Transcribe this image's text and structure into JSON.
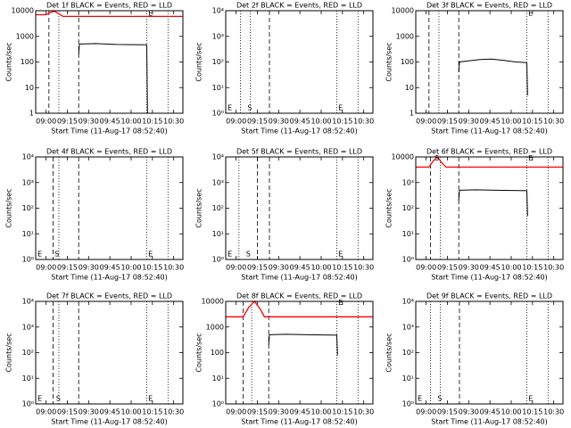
{
  "chart_data": [
    {
      "type": "line",
      "title": "Det 1f BLACK = Events, RED = LLD",
      "ylabel": "Counts/sec",
      "xlabel": "Start Time (11-Aug-17 08:52:40)",
      "log_y": true,
      "xlim": [
        532.67,
        636.5
      ],
      "xticks": [
        {
          "value": 540,
          "label": "09:00"
        },
        {
          "value": 555,
          "label": "09:15"
        },
        {
          "value": 570,
          "label": "09:30"
        },
        {
          "value": 585,
          "label": "09:45"
        },
        {
          "value": 600,
          "label": "10:00"
        },
        {
          "value": 615,
          "label": "10:15"
        },
        {
          "value": 630,
          "label": "10:30"
        }
      ],
      "ylim": [
        1,
        10000
      ],
      "yticks": [
        1,
        10,
        100,
        1000,
        10000
      ],
      "series": [
        {
          "color": "#ff0000",
          "x": [
            532.67,
            540,
            543,
            546,
            549,
            552,
            636.5
          ],
          "values": [
            7000,
            7000,
            8500,
            9500,
            7500,
            6000,
            6000
          ]
        },
        {
          "color": "#000000",
          "x": [
            563,
            563.5,
            575,
            590,
            611,
            611.5
          ],
          "values": [
            200,
            500,
            520,
            480,
            470,
            1
          ]
        }
      ],
      "vlines": [
        {
          "x": 542,
          "style": "dashed"
        },
        {
          "x": 549,
          "style": "dotted"
        },
        {
          "x": 563,
          "style": "dashed"
        },
        {
          "x": 611,
          "style": "dotted"
        },
        {
          "x": 626,
          "style": "dotted"
        }
      ],
      "annotations": [
        {
          "text": "E",
          "x": 612,
          "y": 8000
        }
      ]
    },
    {
      "type": "line",
      "title": "Det 2f BLACK = Events, RED = LLD",
      "ylabel": "Counts/sec",
      "xlabel": "Start Time (11-Aug-17 08:52:40)",
      "log_y": true,
      "xlim": [
        532.67,
        636.5
      ],
      "xticks": [
        {
          "value": 540,
          "label": "09:00"
        },
        {
          "value": 555,
          "label": "09:15"
        },
        {
          "value": 570,
          "label": "09:30"
        },
        {
          "value": 585,
          "label": "09:45"
        },
        {
          "value": 600,
          "label": "10:00"
        },
        {
          "value": 615,
          "label": "10:15"
        },
        {
          "value": 630,
          "label": "10:30"
        }
      ],
      "ylim": [
        1,
        10000
      ],
      "yticks": [
        {
          "value": 1,
          "label": "10⁰"
        },
        {
          "value": 10,
          "label": "10¹"
        },
        {
          "value": 100,
          "label": "10²"
        },
        {
          "value": 1000,
          "label": "10³"
        },
        {
          "value": 10000,
          "label": "10⁴"
        }
      ],
      "series": [],
      "vlines": [
        {
          "x": 543,
          "style": "dotted"
        },
        {
          "x": 550,
          "style": "dotted"
        },
        {
          "x": 563.5,
          "style": "dashed"
        },
        {
          "x": 611,
          "style": "dotted"
        },
        {
          "x": 626,
          "style": "dotted"
        }
      ],
      "annotations": [
        {
          "text": "E",
          "x": 534,
          "y": 1.6
        },
        {
          "text": "S",
          "x": 548,
          "y": 1.6
        },
        {
          "text": "E",
          "x": 612,
          "y": 1.6
        }
      ]
    },
    {
      "type": "line",
      "title": "Det 3f BLACK = Events, RED = LLD",
      "ylabel": "Counts/sec",
      "xlabel": "Start Time (11-Aug-17 08:52:40)",
      "log_y": true,
      "xlim": [
        532.67,
        636.5
      ],
      "xticks": [
        {
          "value": 540,
          "label": "09:00"
        },
        {
          "value": 555,
          "label": "09:15"
        },
        {
          "value": 570,
          "label": "09:30"
        },
        {
          "value": 585,
          "label": "09:45"
        },
        {
          "value": 600,
          "label": "10:00"
        },
        {
          "value": 615,
          "label": "10:15"
        },
        {
          "value": 630,
          "label": "10:30"
        }
      ],
      "ylim": [
        1,
        10000
      ],
      "yticks": [
        1,
        10,
        100,
        1000,
        10000
      ],
      "series": [
        {
          "color": "#000000",
          "x": [
            563,
            563.5,
            570,
            578,
            586,
            595,
            603,
            610,
            611,
            611.5
          ],
          "values": [
            40,
            100,
            110,
            125,
            130,
            115,
            100,
            95,
            90,
            5
          ]
        }
      ],
      "vlines": [
        {
          "x": 542,
          "style": "dashed"
        },
        {
          "x": 549,
          "style": "dotted"
        },
        {
          "x": 563,
          "style": "dashed"
        },
        {
          "x": 611,
          "style": "dotted"
        },
        {
          "x": 626,
          "style": "dotted"
        }
      ],
      "annotations": [
        {
          "text": "E",
          "x": 612,
          "y": 8000
        }
      ]
    },
    {
      "type": "line",
      "title": "Det 4f BLACK = Events, RED = LLD",
      "ylabel": "Counts/sec",
      "xlabel": "Start Time (11-Aug-17 08:52:40)",
      "log_y": true,
      "xlim": [
        532.67,
        636.5
      ],
      "xticks": [
        {
          "value": 540,
          "label": "09:00"
        },
        {
          "value": 555,
          "label": "09:15"
        },
        {
          "value": 570,
          "label": "09:30"
        },
        {
          "value": 585,
          "label": "09:45"
        },
        {
          "value": 600,
          "label": "10:00"
        },
        {
          "value": 615,
          "label": "10:15"
        },
        {
          "value": 630,
          "label": "10:30"
        }
      ],
      "ylim": [
        1,
        10000
      ],
      "yticks": [
        {
          "value": 1,
          "label": "10⁰"
        },
        {
          "value": 10,
          "label": "10¹"
        },
        {
          "value": 100,
          "label": "10²"
        },
        {
          "value": 1000,
          "label": "10³"
        },
        {
          "value": 10000,
          "label": "10⁴"
        }
      ],
      "series": [],
      "vlines": [
        {
          "x": 545,
          "style": "dashed"
        },
        {
          "x": 549,
          "style": "dotted"
        },
        {
          "x": 563,
          "style": "dashed"
        },
        {
          "x": 611,
          "style": "dotted"
        },
        {
          "x": 626,
          "style": "dotted"
        }
      ],
      "annotations": [
        {
          "text": "E",
          "x": 534,
          "y": 1.6
        },
        {
          "text": "S",
          "x": 546,
          "y": 1.6
        },
        {
          "text": "E",
          "x": 612,
          "y": 1.6
        }
      ]
    },
    {
      "type": "line",
      "title": "Det 5f BLACK = Events, RED = LLD",
      "ylabel": "Counts/sec",
      "xlabel": "Start Time (11-Aug-17 08:52:40)",
      "log_y": true,
      "xlim": [
        532.67,
        636.5
      ],
      "xticks": [
        {
          "value": 540,
          "label": "09:00"
        },
        {
          "value": 555,
          "label": "09:15"
        },
        {
          "value": 570,
          "label": "09:30"
        },
        {
          "value": 585,
          "label": "09:45"
        },
        {
          "value": 600,
          "label": "10:00"
        },
        {
          "value": 615,
          "label": "10:15"
        },
        {
          "value": 630,
          "label": "10:30"
        }
      ],
      "ylim": [
        1,
        10000
      ],
      "yticks": [
        {
          "value": 1,
          "label": "10⁰"
        },
        {
          "value": 10,
          "label": "10¹"
        },
        {
          "value": 100,
          "label": "10²"
        },
        {
          "value": 1000,
          "label": "10³"
        },
        {
          "value": 10000,
          "label": "10⁴"
        }
      ],
      "series": [],
      "vlines": [
        {
          "x": 542,
          "style": "dotted"
        },
        {
          "x": 555,
          "style": "dashed"
        },
        {
          "x": 563.5,
          "style": "dashed"
        },
        {
          "x": 611,
          "style": "dotted"
        },
        {
          "x": 626,
          "style": "dotted"
        }
      ],
      "annotations": [
        {
          "text": "E",
          "x": 534,
          "y": 1.6
        },
        {
          "text": "S",
          "x": 547,
          "y": 1.6
        },
        {
          "text": "E",
          "x": 612,
          "y": 1.6
        }
      ]
    },
    {
      "type": "line",
      "title": "Det 6f BLACK = Events, RED = LLD",
      "ylabel": "Counts/sec",
      "xlabel": "Start Time (11-Aug-17 08:52:40)",
      "log_y": true,
      "xlim": [
        532.67,
        636.5
      ],
      "xticks": [
        {
          "value": 540,
          "label": "09:00"
        },
        {
          "value": 555,
          "label": "09:15"
        },
        {
          "value": 570,
          "label": "09:30"
        },
        {
          "value": 585,
          "label": "09:45"
        },
        {
          "value": 600,
          "label": "10:00"
        },
        {
          "value": 615,
          "label": "10:15"
        },
        {
          "value": 630,
          "label": "10:30"
        }
      ],
      "ylim": [
        1,
        10000
      ],
      "yticks": [
        {
          "value": 1,
          "label": "10⁰"
        },
        {
          "value": 10,
          "label": "10¹"
        },
        {
          "value": 100,
          "label": "10²"
        },
        {
          "value": 1000,
          "label": "10³"
        },
        10000
      ],
      "series": [
        {
          "color": "#ff0000",
          "x": [
            532.67,
            542,
            545,
            548,
            551,
            554,
            636.5
          ],
          "values": [
            4000,
            4000,
            7000,
            10000,
            6000,
            4000,
            4000
          ]
        },
        {
          "color": "#000000",
          "x": [
            563,
            563.5,
            575,
            590,
            611,
            611.5
          ],
          "values": [
            200,
            500,
            520,
            500,
            480,
            50
          ]
        }
      ],
      "vlines": [
        {
          "x": 543,
          "style": "dashed"
        },
        {
          "x": 550,
          "style": "dotted"
        },
        {
          "x": 563,
          "style": "dashed"
        },
        {
          "x": 611,
          "style": "dotted"
        },
        {
          "x": 626,
          "style": "dotted"
        }
      ],
      "annotations": [
        {
          "text": "S",
          "x": 546,
          "y": 9000
        },
        {
          "text": "E",
          "x": 612,
          "y": 9000
        }
      ]
    },
    {
      "type": "line",
      "title": "Det 7f BLACK = Events, RED = LLD",
      "ylabel": "Counts/sec",
      "xlabel": "Start Time (11-Aug-17 08:52:40)",
      "log_y": true,
      "xlim": [
        532.67,
        636.5
      ],
      "xticks": [
        {
          "value": 540,
          "label": "09:00"
        },
        {
          "value": 555,
          "label": "09:15"
        },
        {
          "value": 570,
          "label": "09:30"
        },
        {
          "value": 585,
          "label": "09:45"
        },
        {
          "value": 600,
          "label": "10:00"
        },
        {
          "value": 615,
          "label": "10:15"
        },
        {
          "value": 630,
          "label": "10:30"
        }
      ],
      "ylim": [
        1,
        10000
      ],
      "yticks": [
        {
          "value": 1,
          "label": "10⁰"
        },
        {
          "value": 10,
          "label": "10¹"
        },
        {
          "value": 100,
          "label": "10²"
        },
        {
          "value": 1000,
          "label": "10³"
        },
        {
          "value": 10000,
          "label": "10⁴"
        }
      ],
      "series": [],
      "vlines": [
        {
          "x": 545,
          "style": "dashed"
        },
        {
          "x": 549,
          "style": "dotted"
        },
        {
          "x": 563,
          "style": "dashed"
        },
        {
          "x": 611,
          "style": "dotted"
        },
        {
          "x": 626,
          "style": "dotted"
        }
      ],
      "annotations": [
        {
          "text": "E",
          "x": 534,
          "y": 1.6
        },
        {
          "text": "S",
          "x": 547,
          "y": 1.6
        },
        {
          "text": "E",
          "x": 612,
          "y": 1.6
        }
      ]
    },
    {
      "type": "line",
      "title": "Det 8f BLACK = Events, RED = LLD",
      "ylabel": "Counts/sec",
      "xlabel": "Start Time (11-Aug-17 08:52:40)",
      "log_y": true,
      "xlim": [
        532.67,
        636.5
      ],
      "xticks": [
        {
          "value": 540,
          "label": "09:00"
        },
        {
          "value": 555,
          "label": "09:15"
        },
        {
          "value": 570,
          "label": "09:30"
        },
        {
          "value": 585,
          "label": "09:45"
        },
        {
          "value": 600,
          "label": "10:00"
        },
        {
          "value": 615,
          "label": "10:15"
        },
        {
          "value": 630,
          "label": "10:30"
        }
      ],
      "ylim": [
        1,
        10000
      ],
      "yticks": [
        {
          "value": 1,
          "label": "10⁰"
        },
        {
          "value": 10,
          "label": "10¹"
        },
        100,
        1000,
        10000
      ],
      "series": [
        {
          "color": "#ff0000",
          "x": [
            532.67,
            545,
            549,
            553,
            557,
            560,
            636.5
          ],
          "values": [
            2500,
            2500,
            6000,
            10000,
            5000,
            2500,
            2500
          ]
        },
        {
          "color": "#000000",
          "x": [
            563,
            563.5,
            575,
            590,
            611,
            611.5
          ],
          "values": [
            200,
            500,
            520,
            500,
            480,
            80
          ]
        }
      ],
      "vlines": [
        {
          "x": 545,
          "style": "dashed"
        },
        {
          "x": 551,
          "style": "dotted"
        },
        {
          "x": 563,
          "style": "dashed"
        },
        {
          "x": 611,
          "style": "dotted"
        },
        {
          "x": 626,
          "style": "dotted"
        }
      ],
      "annotations": [
        {
          "text": "E",
          "x": 612,
          "y": 9000
        }
      ]
    },
    {
      "type": "line",
      "title": "Det 9f BLACK = Events, RED = LLD",
      "ylabel": "Counts/sec",
      "xlabel": "Start Time (11-Aug-17 08:52:40)",
      "log_y": true,
      "xlim": [
        532.67,
        636.5
      ],
      "xticks": [
        {
          "value": 540,
          "label": "09:00"
        },
        {
          "value": 555,
          "label": "09:15"
        },
        {
          "value": 570,
          "label": "09:30"
        },
        {
          "value": 585,
          "label": "09:45"
        },
        {
          "value": 600,
          "label": "10:00"
        },
        {
          "value": 615,
          "label": "10:15"
        },
        {
          "value": 630,
          "label": "10:30"
        }
      ],
      "ylim": [
        1,
        10000
      ],
      "yticks": [
        {
          "value": 1,
          "label": "10⁰"
        },
        {
          "value": 10,
          "label": "10¹"
        },
        {
          "value": 100,
          "label": "10²"
        },
        {
          "value": 1000,
          "label": "10³"
        },
        {
          "value": 10000,
          "label": "10⁴"
        }
      ],
      "series": [],
      "vlines": [
        {
          "x": 543,
          "style": "dotted"
        },
        {
          "x": 550,
          "style": "dotted"
        },
        {
          "x": 563.5,
          "style": "dashed"
        },
        {
          "x": 611,
          "style": "dotted"
        },
        {
          "x": 626,
          "style": "dotted"
        }
      ],
      "annotations": [
        {
          "text": "E",
          "x": 534,
          "y": 1.6
        },
        {
          "text": "S",
          "x": 548,
          "y": 1.6
        },
        {
          "text": "E",
          "x": 612,
          "y": 1.6
        }
      ]
    }
  ]
}
